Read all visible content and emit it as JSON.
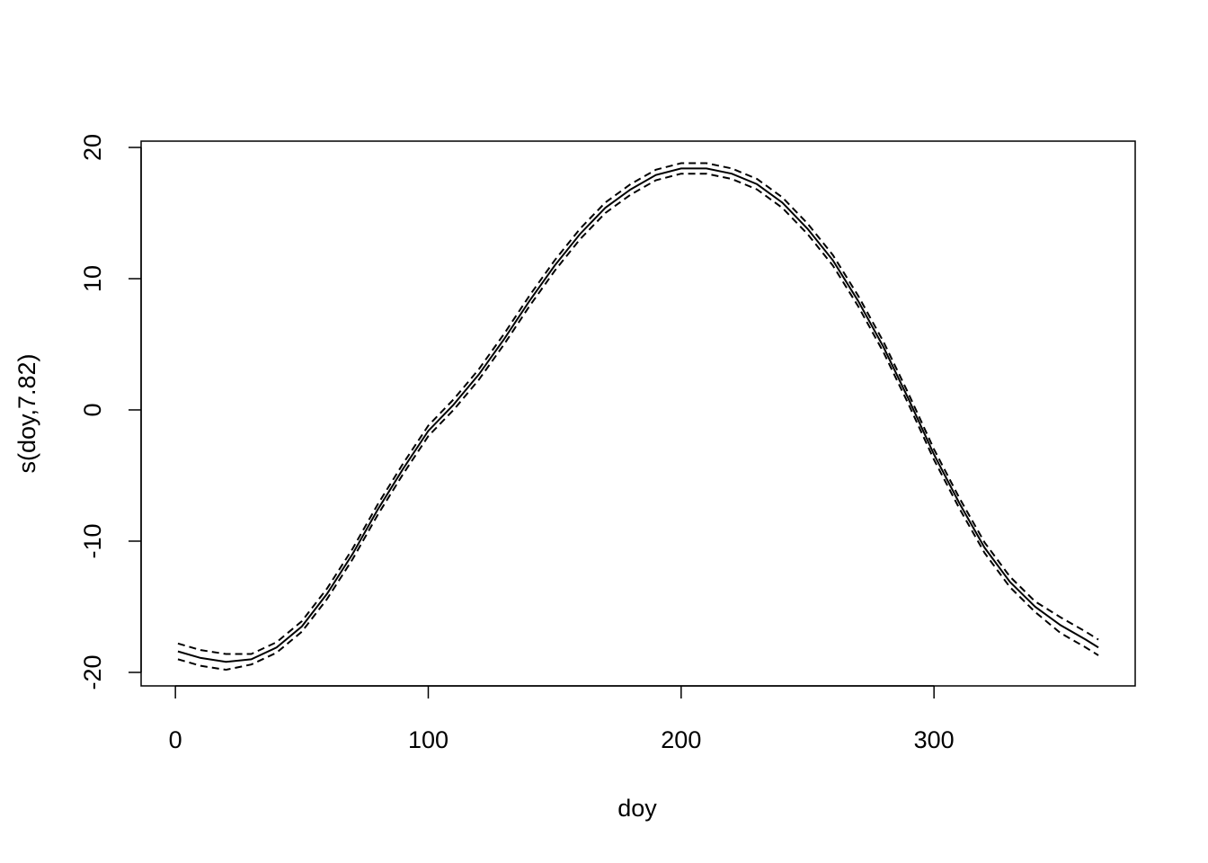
{
  "chart_data": {
    "type": "line",
    "xlabel": "doy",
    "ylabel": "s(doy,7.82)",
    "x": [
      1,
      10,
      20,
      30,
      40,
      50,
      60,
      70,
      80,
      90,
      100,
      110,
      120,
      130,
      140,
      150,
      160,
      170,
      180,
      190,
      200,
      210,
      220,
      230,
      240,
      250,
      260,
      270,
      280,
      290,
      300,
      310,
      320,
      330,
      340,
      350,
      360,
      365
    ],
    "series": [
      {
        "color": "#000000",
        "dash": false,
        "values": [
          -18.4,
          -18.9,
          -19.2,
          -19.0,
          -18.1,
          -16.5,
          -14.0,
          -11.0,
          -7.6,
          -4.5,
          -1.6,
          0.4,
          2.7,
          5.4,
          8.3,
          11.0,
          13.4,
          15.4,
          16.8,
          17.9,
          18.4,
          18.4,
          18.0,
          17.2,
          15.8,
          13.8,
          11.4,
          8.3,
          4.8,
          0.8,
          -3.4,
          -7.1,
          -10.5,
          -13.1,
          -15.0,
          -16.4,
          -17.5,
          -18.1
        ]
      },
      {
        "color": "#000000",
        "dash": true,
        "values": [
          -17.8,
          -18.3,
          -18.6,
          -18.6,
          -17.7,
          -16.1,
          -13.6,
          -10.6,
          -7.2,
          -4.1,
          -1.2,
          0.8,
          3.1,
          5.8,
          8.7,
          11.4,
          13.8,
          15.8,
          17.2,
          18.3,
          18.8,
          18.8,
          18.4,
          17.6,
          16.2,
          14.2,
          11.8,
          8.7,
          5.2,
          1.2,
          -3.0,
          -6.7,
          -10.1,
          -12.7,
          -14.6,
          -15.8,
          -16.9,
          -17.5
        ]
      },
      {
        "color": "#000000",
        "dash": true,
        "values": [
          -19.0,
          -19.5,
          -19.8,
          -19.4,
          -18.5,
          -16.9,
          -14.4,
          -11.4,
          -8.0,
          -4.9,
          -2.0,
          0.0,
          2.3,
          5.0,
          7.9,
          10.6,
          13.0,
          15.0,
          16.4,
          17.5,
          18.0,
          18.0,
          17.6,
          16.8,
          15.4,
          13.4,
          11.0,
          7.9,
          4.4,
          0.4,
          -3.8,
          -7.5,
          -10.9,
          -13.5,
          -15.4,
          -17.0,
          -18.1,
          -18.7
        ]
      }
    ],
    "xlim": [
      -13.56,
      379.56
    ],
    "xticks": [
      0,
      100,
      200,
      300
    ],
    "ylim": [
      -21.03,
      20.48
    ],
    "yticks": [
      -20,
      -10,
      0,
      10,
      20
    ]
  }
}
